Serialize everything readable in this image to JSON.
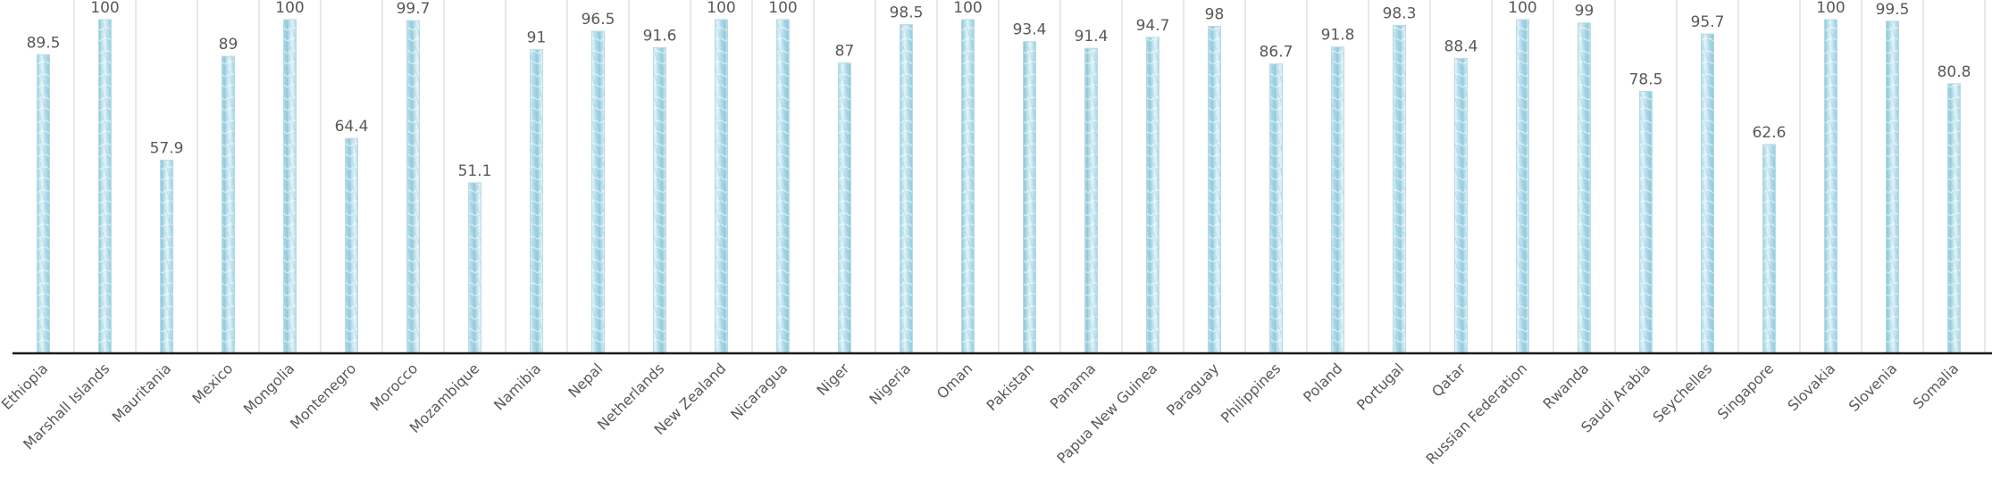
{
  "chart_data": {
    "type": "bar",
    "title": "",
    "xlabel": "",
    "ylabel": "",
    "ylim": [
      0,
      100
    ],
    "grid": "vertical separators",
    "legend": "none",
    "bar_color": "#a9d8e6",
    "bar_highlight_color": "#e6f5fa",
    "categories": [
      "Ethiopia",
      "Marshall Islands",
      "Mauritania",
      "Mexico",
      "Mongolia",
      "Montenegro",
      "Morocco",
      "Mozambique",
      "Namibia",
      "Nepal",
      "Netherlands",
      "New Zealand",
      "Nicaragua",
      "Niger",
      "Nigeria",
      "Oman",
      "Pakistan",
      "Panama",
      "Papua New Guinea",
      "Paraguay",
      "Philippines",
      "Poland",
      "Portugal",
      "Qatar",
      "Russian Federation",
      "Rwanda",
      "Saudi Arabia",
      "Seychelles",
      "Singapore",
      "Slovakia",
      "Slovenia",
      "Somalia"
    ],
    "values": [
      89.5,
      100,
      57.9,
      89,
      100,
      64.4,
      99.7,
      51.1,
      91,
      96.5,
      91.6,
      100,
      100,
      87,
      98.5,
      100,
      93.4,
      91.4,
      94.7,
      98,
      86.7,
      91.8,
      98.3,
      88.4,
      100,
      99,
      78.5,
      95.7,
      62.6,
      100,
      99.5,
      80.8
    ],
    "value_labels": [
      "89.5",
      "100",
      "57.9",
      "89",
      "100",
      "64.4",
      "99.7",
      "51.1",
      "91",
      "96.5",
      "91.6",
      "100",
      "100",
      "87",
      "98.5",
      "100",
      "93.4",
      "91.4",
      "94.7",
      "98",
      "86.7",
      "91.8",
      "98.3",
      "88.4",
      "100",
      "99",
      "78.5",
      "95.7",
      "62.6",
      "100",
      "99.5",
      "80.8"
    ]
  }
}
